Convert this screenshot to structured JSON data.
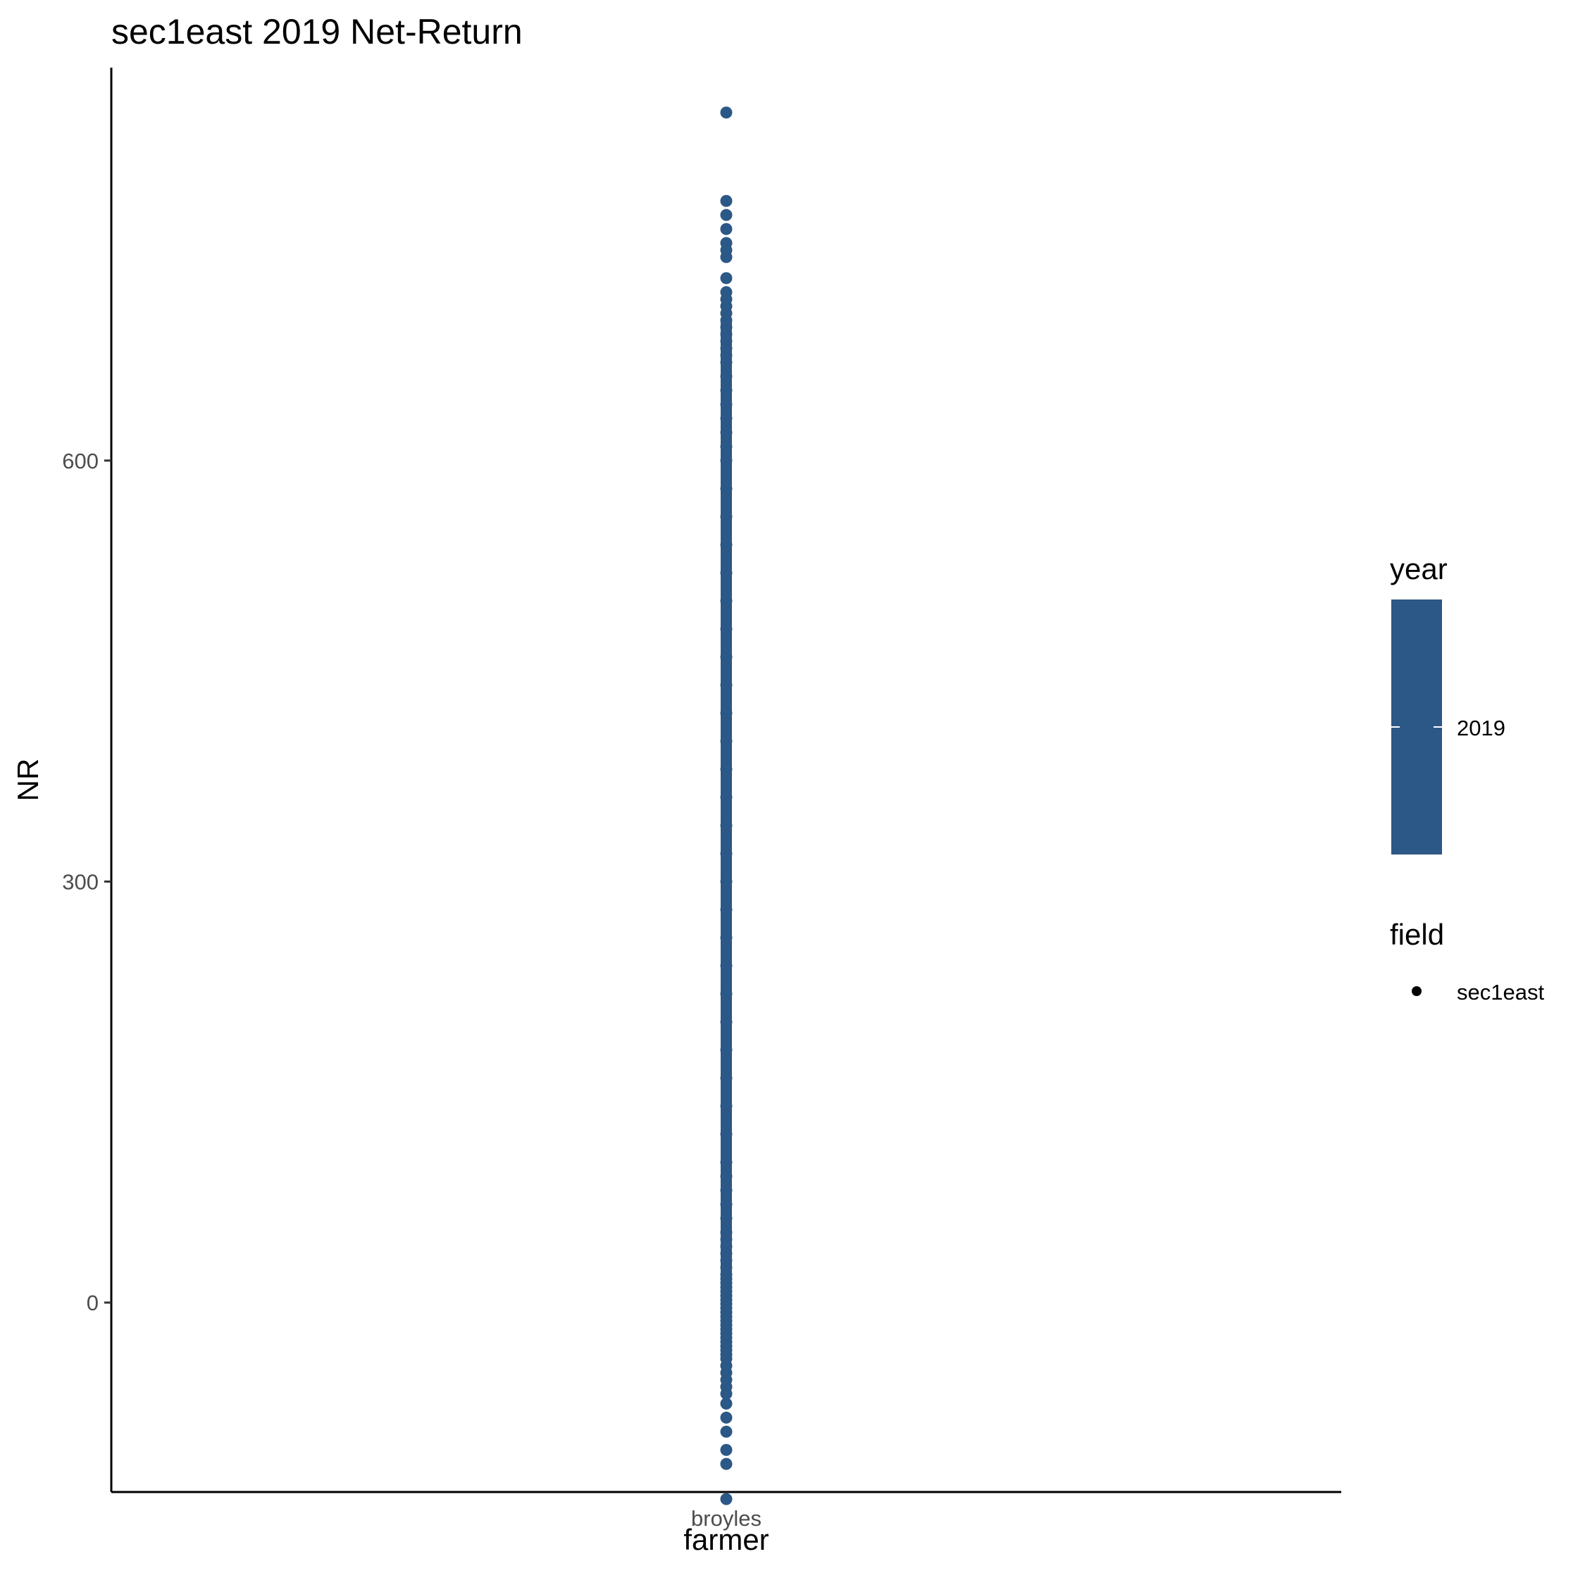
{
  "chart_data": {
    "type": "scatter",
    "title": "sec1east 2019 Net-Return",
    "xlabel": "farmer",
    "ylabel": "NR",
    "categories": [
      "broyles"
    ],
    "ylim": [
      -135,
      880
    ],
    "yticks": [
      0,
      300,
      600
    ],
    "ytick_labels": [
      "0",
      "300",
      "600"
    ],
    "grid": false,
    "legend_position": "right",
    "point_color": "#2B5886",
    "series": [
      {
        "category": "broyles",
        "values": [
          -140,
          -115,
          -105,
          -92,
          -82,
          -72,
          -65,
          -60,
          -55,
          -50,
          -45,
          -40,
          -37,
          -34,
          -31,
          -28,
          -25,
          -22,
          -19,
          -16,
          -13,
          -10,
          -7,
          -4,
          -1,
          2,
          5,
          8,
          11,
          14,
          17,
          20,
          25,
          30,
          35,
          40,
          45,
          50,
          60,
          70,
          80,
          90,
          100,
          120,
          140,
          160,
          180,
          200,
          220,
          240,
          260,
          280,
          300,
          320,
          340,
          360,
          380,
          400,
          420,
          440,
          460,
          480,
          500,
          520,
          540,
          560,
          580,
          600,
          610,
          620,
          630,
          640,
          650,
          660,
          670,
          675,
          680,
          685,
          690,
          695,
          700,
          705,
          710,
          715,
          720,
          730,
          745,
          750,
          755,
          765,
          775,
          785,
          848
        ]
      }
    ],
    "legends": [
      {
        "title": "year",
        "kind": "colorbar",
        "labels": [
          "2019"
        ],
        "color": "#2B5886"
      },
      {
        "title": "field",
        "kind": "shape",
        "labels": [
          "sec1east"
        ],
        "color": "#000000"
      }
    ]
  }
}
